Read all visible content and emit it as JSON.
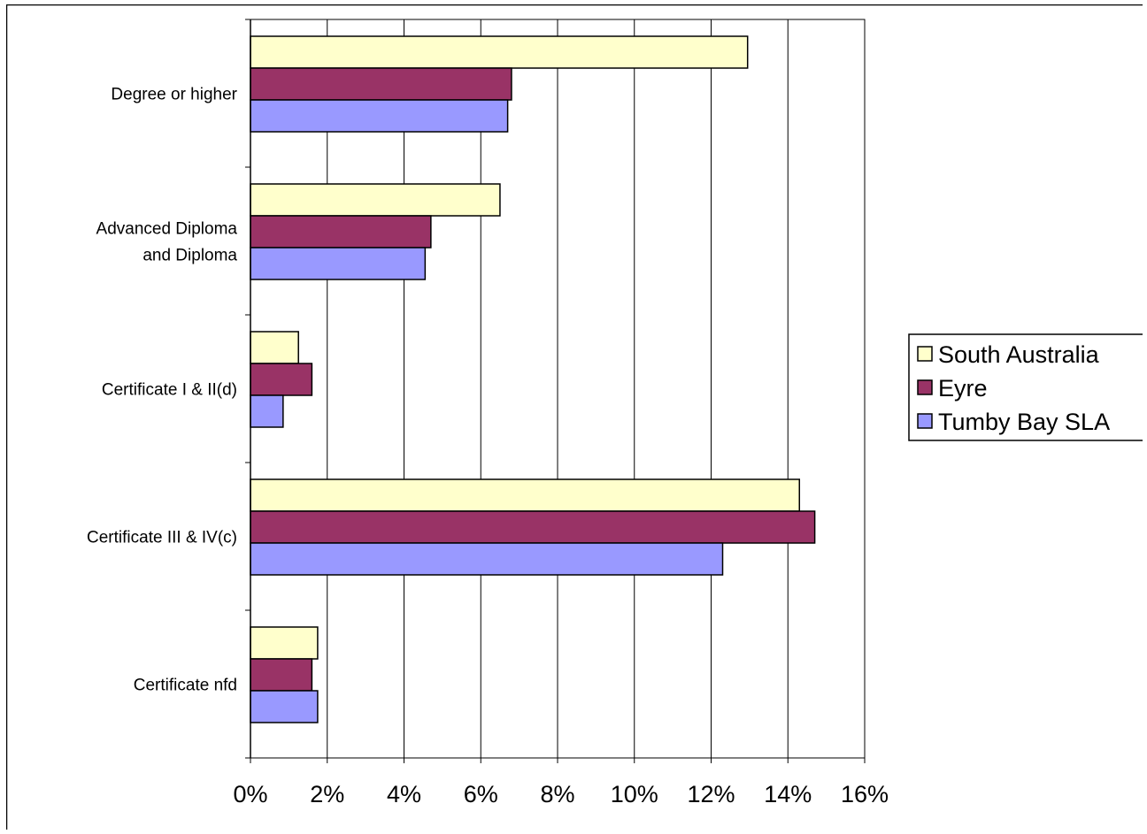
{
  "chart_data": {
    "type": "bar",
    "orientation": "horizontal",
    "categories": [
      [
        "Degree or higher"
      ],
      [
        "Advanced Diploma",
        "and Diploma"
      ],
      [
        "Certificate I & II(d)"
      ],
      [
        "Certificate III & IV(c)"
      ],
      [
        "Certificate nfd"
      ]
    ],
    "series": [
      {
        "name": "South Australia",
        "color": "#ffffcc",
        "values": [
          12.95,
          6.5,
          1.25,
          14.3,
          1.75
        ]
      },
      {
        "name": "Eyre",
        "color": "#993366",
        "values": [
          6.8,
          4.7,
          1.6,
          14.7,
          1.6
        ]
      },
      {
        "name": "Tumby Bay SLA",
        "color": "#9999ff",
        "values": [
          6.7,
          4.55,
          0.85,
          12.3,
          1.75
        ]
      }
    ],
    "xlim": [
      0,
      16
    ],
    "xticks": [
      "0%",
      "2%",
      "4%",
      "6%",
      "8%",
      "10%",
      "12%",
      "14%",
      "16%"
    ],
    "grid": true,
    "legend_position": "right",
    "title": "",
    "xlabel": "",
    "ylabel": ""
  }
}
